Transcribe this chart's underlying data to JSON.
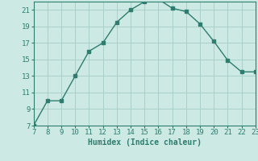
{
  "x": [
    7,
    8,
    9,
    10,
    11,
    12,
    13,
    14,
    15,
    16,
    17,
    18,
    19,
    20,
    21,
    22,
    23
  ],
  "y": [
    7,
    10,
    10,
    13,
    16,
    17,
    19.5,
    21,
    22,
    22.3,
    21.2,
    20.8,
    19.3,
    17.2,
    14.9,
    13.5,
    13.5
  ],
  "xlabel": "Humidex (Indice chaleur)",
  "xlim": [
    7,
    23
  ],
  "ylim": [
    7,
    22
  ],
  "xticks": [
    7,
    8,
    9,
    10,
    11,
    12,
    13,
    14,
    15,
    16,
    17,
    18,
    19,
    20,
    21,
    22,
    23
  ],
  "yticks": [
    7,
    9,
    11,
    13,
    15,
    17,
    19,
    21
  ],
  "line_color": "#2e7d6e",
  "bg_color": "#cce9e4",
  "grid_color": "#aad0ca",
  "label_fontsize": 7,
  "tick_fontsize": 6.5
}
